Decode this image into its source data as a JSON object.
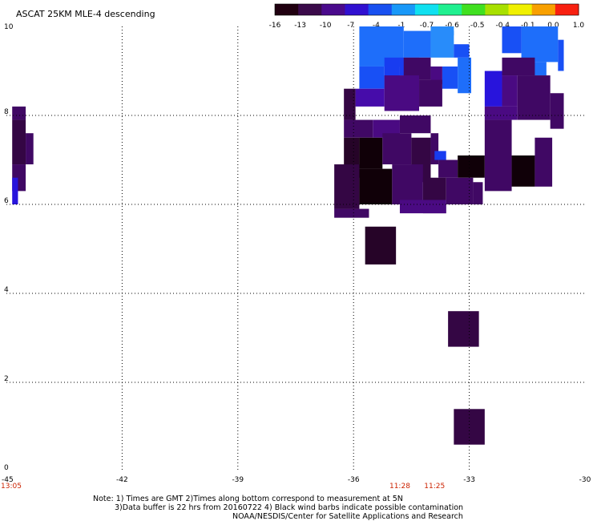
{
  "chart_data": {
    "type": "heatmap",
    "title": "ASCAT 25KM MLE-4 descending",
    "xlim": [
      -45,
      -30
    ],
    "ylim": [
      0,
      10
    ],
    "x_ticks": [
      {
        "value": -45,
        "label": "-45"
      },
      {
        "value": -42,
        "label": "-42"
      },
      {
        "value": -39,
        "label": "-39"
      },
      {
        "value": -36,
        "label": "-36"
      },
      {
        "value": -33,
        "label": "-33"
      },
      {
        "value": -30,
        "label": "-30"
      }
    ],
    "y_ticks": [
      {
        "value": 0,
        "label": "0"
      },
      {
        "value": 2,
        "label": "2"
      },
      {
        "value": 4,
        "label": "4"
      },
      {
        "value": 6,
        "label": "6"
      },
      {
        "value": 8,
        "label": "8"
      },
      {
        "value": 10,
        "label": "10"
      }
    ],
    "grid": true,
    "colorbar": {
      "labels": [
        "-16",
        "-13",
        "-10",
        "-7",
        "-4",
        "-1",
        "-0.7",
        "-0.6",
        "-0.5",
        "-0.4",
        "-0.1",
        "0.0",
        "1.0"
      ],
      "colors": [
        "#200010",
        "#3a0a4a",
        "#4a0a8c",
        "#3010d0",
        "#1850f0",
        "#1898f8",
        "#10e0f0",
        "#20f090",
        "#40e020",
        "#a8e000",
        "#f0f000",
        "#f8a000",
        "#f82010"
      ]
    },
    "time_labels": [
      {
        "x": -45,
        "label": "13:05"
      },
      {
        "x": -34.8,
        "label": "11:28"
      },
      {
        "x": -33.9,
        "label": "11:25"
      }
    ],
    "cells": [
      {
        "x0": -44.85,
        "x1": -44.5,
        "y0": 7.9,
        "y1": 8.2,
        "v": -13
      },
      {
        "x0": -44.85,
        "x1": -44.5,
        "y0": 6.9,
        "y1": 7.9,
        "v": -14
      },
      {
        "x0": -44.85,
        "x1": -44.5,
        "y0": 6.3,
        "y1": 6.9,
        "v": -13
      },
      {
        "x0": -44.5,
        "x1": -44.3,
        "y0": 6.9,
        "y1": 7.6,
        "v": -13
      },
      {
        "x0": -44.85,
        "x1": -44.7,
        "y0": 6.0,
        "y1": 6.6,
        "v": -8
      },
      {
        "x0": -35.85,
        "x1": -34.7,
        "y0": 9.1,
        "y1": 10.0,
        "v": -5
      },
      {
        "x0": -34.7,
        "x1": -34.0,
        "y0": 9.3,
        "y1": 9.9,
        "v": -5
      },
      {
        "x0": -34.0,
        "x1": -33.4,
        "y0": 9.3,
        "y1": 9.9,
        "v": -4
      },
      {
        "x0": -33.4,
        "x1": -33.0,
        "y0": 9.3,
        "y1": 9.6,
        "v": -6
      },
      {
        "x0": -34.0,
        "x1": -33.4,
        "y0": 9.8,
        "y1": 10.0,
        "v": -4
      },
      {
        "x0": -35.85,
        "x1": -35.2,
        "y0": 8.6,
        "y1": 9.1,
        "v": -6
      },
      {
        "x0": -35.2,
        "x1": -34.8,
        "y0": 8.6,
        "y1": 9.3,
        "v": -7
      },
      {
        "x0": -34.8,
        "x1": -34.3,
        "y0": 8.9,
        "y1": 9.3,
        "v": -7
      },
      {
        "x0": -33.7,
        "x1": -33.3,
        "y0": 8.6,
        "y1": 9.1,
        "v": -6
      },
      {
        "x0": -33.3,
        "x1": -32.95,
        "y0": 8.5,
        "y1": 9.3,
        "v": -5
      },
      {
        "x0": -34.7,
        "x1": -34.0,
        "y0": 8.8,
        "y1": 9.3,
        "v": -13
      },
      {
        "x0": -34.0,
        "x1": -33.7,
        "y0": 8.7,
        "y1": 9.1,
        "v": -12
      },
      {
        "x0": -34.3,
        "x1": -33.7,
        "y0": 8.2,
        "y1": 8.8,
        "v": -13
      },
      {
        "x0": -35.95,
        "x1": -35.2,
        "y0": 8.2,
        "y1": 8.6,
        "v": -10
      },
      {
        "x0": -35.2,
        "x1": -34.3,
        "y0": 8.1,
        "y1": 8.9,
        "v": -12
      },
      {
        "x0": -36.25,
        "x1": -35.95,
        "y0": 7.9,
        "y1": 8.6,
        "v": -14
      },
      {
        "x0": -32.15,
        "x1": -31.65,
        "y0": 9.4,
        "y1": 10.0,
        "v": -6
      },
      {
        "x0": -31.65,
        "x1": -30.7,
        "y0": 9.2,
        "y1": 10.0,
        "v": -5
      },
      {
        "x0": -30.7,
        "x1": -30.55,
        "y0": 9.0,
        "y1": 9.7,
        "v": -6
      },
      {
        "x0": -31.65,
        "x1": -31.0,
        "y0": 8.9,
        "y1": 9.2,
        "v": -5
      },
      {
        "x0": -32.6,
        "x1": -32.15,
        "y0": 8.2,
        "y1": 9.0,
        "v": -8
      },
      {
        "x0": -32.15,
        "x1": -31.75,
        "y0": 8.2,
        "y1": 8.9,
        "v": -12
      },
      {
        "x0": -32.15,
        "x1": -31.3,
        "y0": 8.9,
        "y1": 9.3,
        "v": -13
      },
      {
        "x0": -31.75,
        "x1": -30.9,
        "y0": 7.9,
        "y1": 8.9,
        "v": -13
      },
      {
        "x0": -30.9,
        "x1": -30.55,
        "y0": 7.7,
        "y1": 8.5,
        "v": -13
      },
      {
        "x0": -32.6,
        "x1": -31.75,
        "y0": 7.9,
        "y1": 8.2,
        "v": -12
      },
      {
        "x0": -36.25,
        "x1": -35.5,
        "y0": 7.5,
        "y1": 7.9,
        "v": -13
      },
      {
        "x0": -35.5,
        "x1": -34.8,
        "y0": 7.5,
        "y1": 7.9,
        "v": -12
      },
      {
        "x0": -34.8,
        "x1": -34.0,
        "y0": 7.6,
        "y1": 8.0,
        "v": -13
      },
      {
        "x0": -34.0,
        "x1": -33.8,
        "y0": 6.9,
        "y1": 7.6,
        "v": -13
      },
      {
        "x0": -36.25,
        "x1": -35.85,
        "y0": 6.6,
        "y1": 7.5,
        "v": -15
      },
      {
        "x0": -35.85,
        "x1": -35.25,
        "y0": 6.8,
        "y1": 7.5,
        "v": -16
      },
      {
        "x0": -35.25,
        "x1": -34.5,
        "y0": 6.9,
        "y1": 7.6,
        "v": -13
      },
      {
        "x0": -34.5,
        "x1": -34.0,
        "y0": 6.5,
        "y1": 7.5,
        "v": -14
      },
      {
        "x0": -33.8,
        "x1": -33.3,
        "y0": 6.6,
        "y1": 7.0,
        "v": -13
      },
      {
        "x0": -33.3,
        "x1": -32.6,
        "y0": 6.6,
        "y1": 7.1,
        "v": -16
      },
      {
        "x0": -32.6,
        "x1": -31.9,
        "y0": 6.3,
        "y1": 7.9,
        "v": -13
      },
      {
        "x0": -31.9,
        "x1": -31.3,
        "y0": 6.4,
        "y1": 7.1,
        "v": -16
      },
      {
        "x0": -31.3,
        "x1": -30.85,
        "y0": 6.4,
        "y1": 7.5,
        "v": -13
      },
      {
        "x0": -33.9,
        "x1": -33.6,
        "y0": 7.0,
        "y1": 7.2,
        "v": -7
      },
      {
        "x0": -36.5,
        "x1": -35.85,
        "y0": 5.9,
        "y1": 6.9,
        "v": -14
      },
      {
        "x0": -36.5,
        "x1": -35.6,
        "y0": 5.7,
        "y1": 5.9,
        "v": -13
      },
      {
        "x0": -35.85,
        "x1": -35.0,
        "y0": 6.0,
        "y1": 6.8,
        "v": -16
      },
      {
        "x0": -35.0,
        "x1": -34.2,
        "y0": 6.0,
        "y1": 6.9,
        "v": -13
      },
      {
        "x0": -34.2,
        "x1": -33.6,
        "y0": 5.8,
        "y1": 6.6,
        "v": -14
      },
      {
        "x0": -33.6,
        "x1": -32.9,
        "y0": 6.0,
        "y1": 6.6,
        "v": -13
      },
      {
        "x0": -32.9,
        "x1": -32.65,
        "y0": 6.0,
        "y1": 6.5,
        "v": -13
      },
      {
        "x0": -34.8,
        "x1": -33.6,
        "y0": 5.8,
        "y1": 6.1,
        "v": -12
      },
      {
        "x0": -35.7,
        "x1": -34.9,
        "y0": 4.65,
        "y1": 5.5,
        "v": -15
      },
      {
        "x0": -33.55,
        "x1": -32.75,
        "y0": 2.8,
        "y1": 3.6,
        "v": -14
      },
      {
        "x0": -33.4,
        "x1": -32.6,
        "y0": 0.6,
        "y1": 1.4,
        "v": -14
      }
    ]
  },
  "notes": {
    "line1": "Note: 1) Times are GMT 2)Times along bottom correspond to measurement at 5N",
    "line2": "3)Data buffer is 22 hrs from 20160722 4) Black wind barbs indicate possible contamination",
    "line3": "NOAA/NESDIS/Center for Satellite Applications and Research"
  }
}
